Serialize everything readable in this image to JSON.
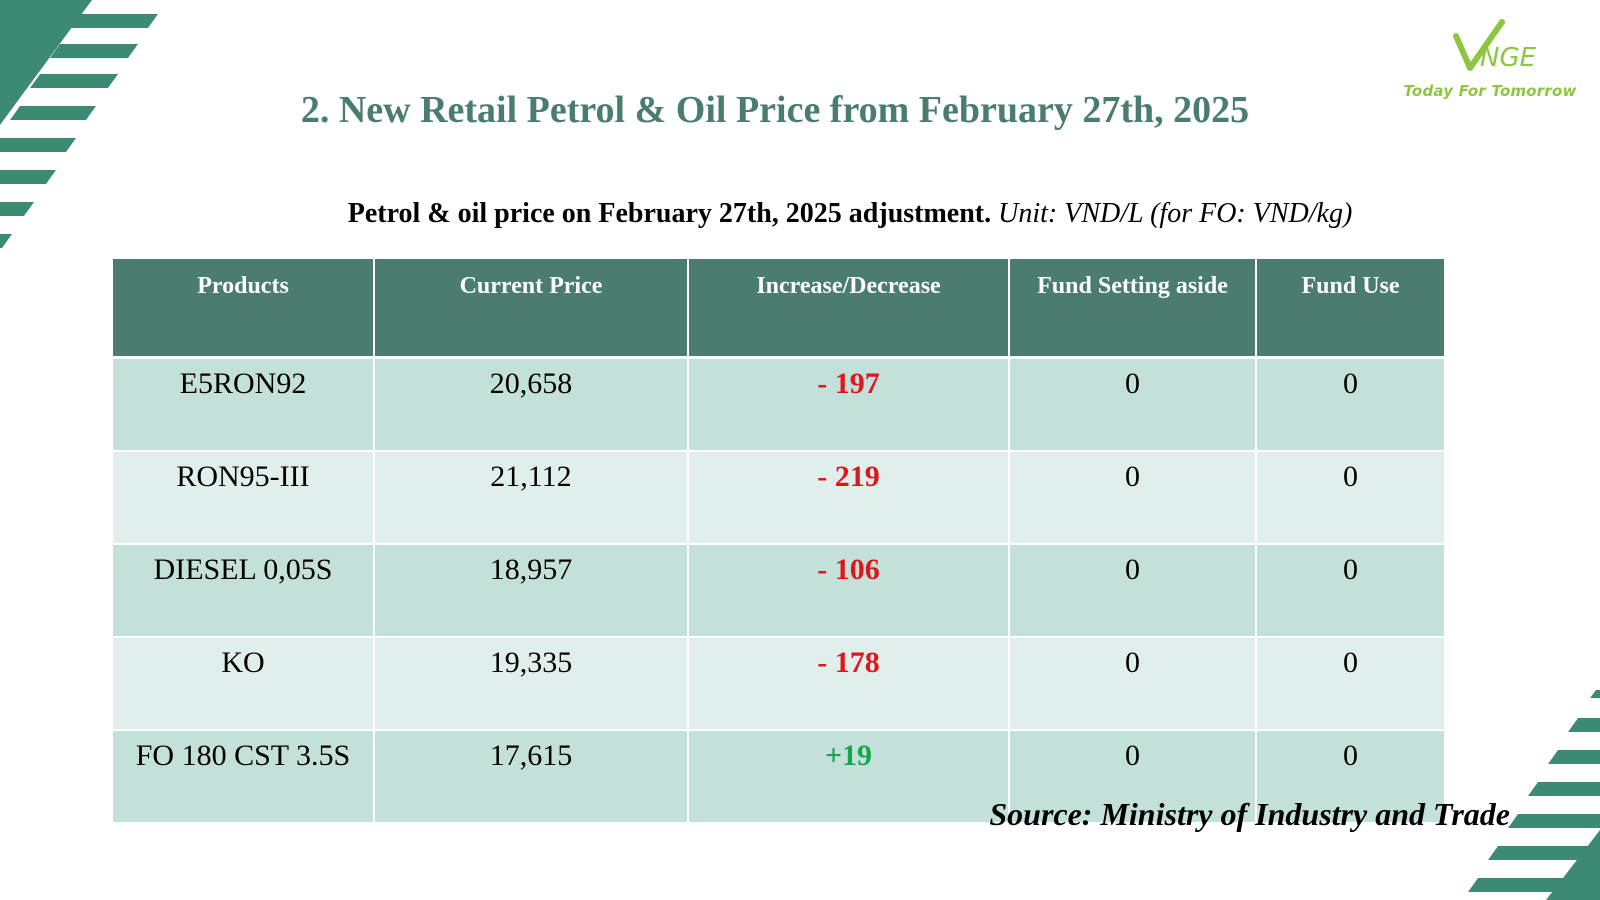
{
  "logo": {
    "brand": "VNGE",
    "tagline": "Today For Tomorrow",
    "color": "#8dc63f"
  },
  "title": "2. New Retail Petrol & Oil Price from February 27th, 2025",
  "subtitle": {
    "bold": "Petrol & oil price on February 27th, 2025 adjustment.",
    "italic": "Unit: VND/L (for FO: VND/kg)"
  },
  "table": {
    "headers": [
      "Products",
      "Current Price",
      "Increase/Decrease",
      "Fund Setting aside",
      "Fund Use"
    ],
    "rows": [
      {
        "product": "E5RON92",
        "price": "20,658",
        "change": "- 197",
        "change_color": "#e0161d",
        "fund_set": "0",
        "fund_use": "0"
      },
      {
        "product": "RON95-III",
        "price": "21,112",
        "change": "- 219",
        "change_color": "#e0161d",
        "fund_set": "0",
        "fund_use": "0"
      },
      {
        "product": "DIESEL 0,05S",
        "price": "18,957",
        "change": "- 106",
        "change_color": "#e0161d",
        "fund_set": "0",
        "fund_use": "0"
      },
      {
        "product": "KO",
        "price": "19,335",
        "change": "- 178",
        "change_color": "#e0161d",
        "fund_set": "0",
        "fund_use": "0"
      },
      {
        "product": "FO 180 CST 3.5S",
        "price": "17,615",
        "change": "+19",
        "change_color": "#12a84a",
        "fund_set": "0",
        "fund_use": "0"
      }
    ]
  },
  "source": "Source: Ministry of Industry and Trade",
  "colors": {
    "accent": "#4a7c70",
    "header_bg": "#4a7c70",
    "row_dark": "#c3e0da",
    "row_light": "#e1efec",
    "decrease": "#e0161d",
    "increase": "#12a84a"
  }
}
